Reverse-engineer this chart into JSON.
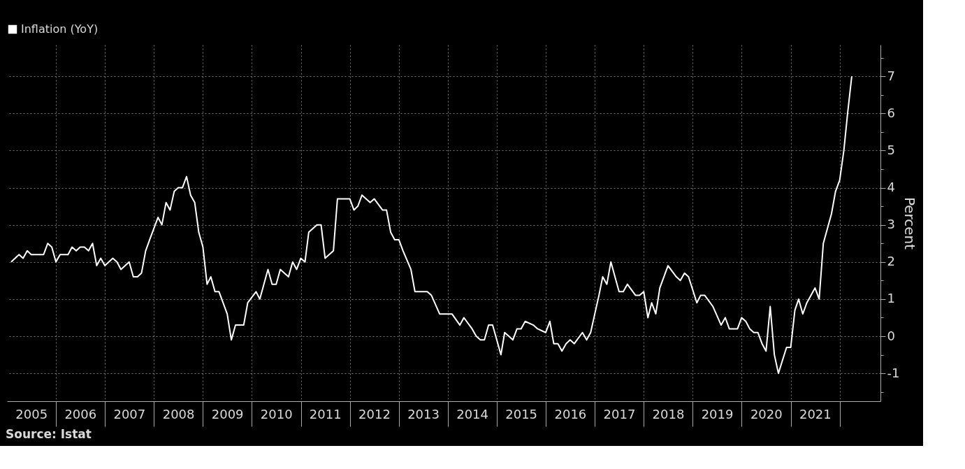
{
  "chart_data": {
    "type": "line",
    "legend": "top left",
    "grid": true,
    "line_style": "solid",
    "ylabel": "Percent",
    "annotations": [
      "Source: Istat"
    ],
    "xlim": [
      "2005-01-01",
      "2022-11-01"
    ],
    "xticks": [
      {
        "value": "2005-07-01",
        "label": "2005"
      },
      {
        "value": "2006-01-01",
        "label": null
      },
      {
        "value": "2006-07-01",
        "label": "2006"
      },
      {
        "value": "2007-01-01",
        "label": null
      },
      {
        "value": "2007-07-01",
        "label": "2007"
      },
      {
        "value": "2008-01-01",
        "label": null
      },
      {
        "value": "2008-07-01",
        "label": "2008"
      },
      {
        "value": "2009-01-01",
        "label": null
      },
      {
        "value": "2009-07-01",
        "label": "2009"
      },
      {
        "value": "2010-01-01",
        "label": null
      },
      {
        "value": "2010-07-01",
        "label": "2010"
      },
      {
        "value": "2011-01-01",
        "label": null
      },
      {
        "value": "2011-07-01",
        "label": "2011"
      },
      {
        "value": "2012-01-01",
        "label": null
      },
      {
        "value": "2012-07-01",
        "label": "2012"
      },
      {
        "value": "2013-01-01",
        "label": null
      },
      {
        "value": "2013-07-01",
        "label": "2013"
      },
      {
        "value": "2014-01-01",
        "label": null
      },
      {
        "value": "2014-07-01",
        "label": "2014"
      },
      {
        "value": "2015-01-01",
        "label": null
      },
      {
        "value": "2015-07-01",
        "label": "2015"
      },
      {
        "value": "2016-01-01",
        "label": null
      },
      {
        "value": "2016-07-01",
        "label": "2016"
      },
      {
        "value": "2017-01-01",
        "label": null
      },
      {
        "value": "2017-07-01",
        "label": "2017"
      },
      {
        "value": "2018-01-01",
        "label": null
      },
      {
        "value": "2018-07-01",
        "label": "2018"
      },
      {
        "value": "2019-01-01",
        "label": null
      },
      {
        "value": "2019-07-01",
        "label": "2019"
      },
      {
        "value": "2020-01-01",
        "label": null
      },
      {
        "value": "2020-07-01",
        "label": "2020"
      },
      {
        "value": "2021-01-01",
        "label": null
      },
      {
        "value": "2021-07-01",
        "label": "2021"
      },
      {
        "value": "2022-01-01",
        "label": null
      }
    ],
    "ylim": [
      -1.75,
      7.85
    ],
    "yticks": [
      {
        "value": -1.5,
        "label": null
      },
      -1,
      {
        "value": -0.5,
        "label": null
      },
      0,
      {
        "value": 0.5,
        "label": null
      },
      1,
      {
        "value": 1.5,
        "label": null
      },
      2,
      {
        "value": 2.5,
        "label": null
      },
      3,
      {
        "value": 3.5,
        "label": null
      },
      4,
      {
        "value": 4.5,
        "label": null
      },
      5,
      {
        "value": 5.5,
        "label": null
      },
      6,
      {
        "value": 6.5,
        "label": null
      },
      7,
      {
        "value": 7.5,
        "label": null
      }
    ],
    "series": [
      {
        "name": "Inflation (YoY)",
        "color": "#ffffff",
        "x": [
          "2005-02",
          "2005-04",
          "2005-05",
          "2005-06",
          "2005-07",
          "2005-10",
          "2005-11",
          "2005-12",
          "2006-01",
          "2006-02",
          "2006-04",
          "2006-05",
          "2006-06",
          "2006-07",
          "2006-08",
          "2006-09",
          "2006-10",
          "2006-11",
          "2006-12",
          "2007-01",
          "2007-03",
          "2007-04",
          "2007-05",
          "2007-07",
          "2007-08",
          "2007-09",
          "2007-10",
          "2007-11",
          "2007-12",
          "2008-02",
          "2008-03",
          "2008-04",
          "2008-05",
          "2008-06",
          "2008-07",
          "2008-08",
          "2008-09",
          "2008-10",
          "2008-11",
          "2008-12",
          "2009-01",
          "2009-02",
          "2009-03",
          "2009-04",
          "2009-05",
          "2009-07",
          "2009-08",
          "2009-09",
          "2009-11",
          "2009-12",
          "2010-02",
          "2010-03",
          "2010-05",
          "2010-06",
          "2010-07",
          "2010-08",
          "2010-10",
          "2010-11",
          "2010-12",
          "2011-01",
          "2011-02",
          "2011-03",
          "2011-05",
          "2011-06",
          "2011-07",
          "2011-09",
          "2011-10",
          "2012-01",
          "2012-02",
          "2012-03",
          "2012-04",
          "2012-06",
          "2012-07",
          "2012-09",
          "2012-10",
          "2012-11",
          "2012-12",
          "2013-01",
          "2013-02",
          "2013-04",
          "2013-05",
          "2013-08",
          "2013-09",
          "2013-11",
          "2014-02",
          "2014-04",
          "2014-05",
          "2014-07",
          "2014-08",
          "2014-09",
          "2014-10",
          "2014-11",
          "2014-12",
          "2015-01",
          "2015-02",
          "2015-03",
          "2015-04",
          "2015-05",
          "2015-06",
          "2015-07",
          "2015-08",
          "2015-10",
          "2015-11",
          "2016-01",
          "2016-02",
          "2016-03",
          "2016-04",
          "2016-05",
          "2016-06",
          "2016-07",
          "2016-08",
          "2016-10",
          "2016-11",
          "2016-12",
          "2017-01",
          "2017-02",
          "2017-03",
          "2017-04",
          "2017-05",
          "2017-07",
          "2017-08",
          "2017-09",
          "2017-11",
          "2017-12",
          "2018-01",
          "2018-02",
          "2018-03",
          "2018-04",
          "2018-05",
          "2018-07",
          "2018-09",
          "2018-10",
          "2018-11",
          "2018-12",
          "2019-02",
          "2019-03",
          "2019-04",
          "2019-06",
          "2019-08",
          "2019-09",
          "2019-10",
          "2019-12",
          "2020-01",
          "2020-02",
          "2020-03",
          "2020-04",
          "2020-05",
          "2020-06",
          "2020-07",
          "2020-08",
          "2020-09",
          "2020-10",
          "2020-12",
          "2021-01",
          "2021-02",
          "2021-03",
          "2021-04",
          "2021-05",
          "2021-06",
          "2021-07",
          "2021-08",
          "2021-09",
          "2021-11",
          "2021-12",
          "2022-01",
          "2022-02",
          "2022-03",
          "2022-04"
        ],
        "values": [
          2.0,
          2.2,
          2.1,
          2.3,
          2.2,
          2.2,
          2.5,
          2.4,
          2.0,
          2.2,
          2.2,
          2.4,
          2.3,
          2.4,
          2.4,
          2.3,
          2.5,
          1.9,
          2.1,
          1.9,
          2.1,
          2.0,
          1.8,
          2.0,
          1.6,
          1.6,
          1.7,
          2.3,
          2.6,
          3.2,
          3.0,
          3.6,
          3.4,
          3.9,
          4.0,
          4.0,
          4.3,
          3.8,
          3.6,
          2.8,
          2.4,
          1.4,
          1.6,
          1.2,
          1.2,
          0.6,
          -0.1,
          0.3,
          0.3,
          0.9,
          1.2,
          1.0,
          1.8,
          1.4,
          1.4,
          1.8,
          1.6,
          2.0,
          1.8,
          2.1,
          2.0,
          2.8,
          3.0,
          3.0,
          2.1,
          2.3,
          3.7,
          3.7,
          3.4,
          3.5,
          3.8,
          3.6,
          3.7,
          3.4,
          3.4,
          2.8,
          2.6,
          2.6,
          2.3,
          1.8,
          1.2,
          1.2,
          1.1,
          0.6,
          0.6,
          0.3,
          0.5,
          0.2,
          0.0,
          -0.1,
          -0.1,
          0.3,
          0.3,
          -0.1,
          -0.5,
          0.1,
          0.0,
          -0.1,
          0.2,
          0.2,
          0.4,
          0.3,
          0.2,
          0.1,
          0.4,
          -0.2,
          -0.2,
          -0.4,
          -0.2,
          -0.1,
          -0.2,
          0.1,
          -0.1,
          0.1,
          0.6,
          1.1,
          1.6,
          1.4,
          2.0,
          1.2,
          1.2,
          1.4,
          1.1,
          1.1,
          1.2,
          0.5,
          0.9,
          0.6,
          1.3,
          1.9,
          1.6,
          1.5,
          1.7,
          1.6,
          0.9,
          1.1,
          1.1,
          0.8,
          0.3,
          0.5,
          0.2,
          0.2,
          0.5,
          0.4,
          0.2,
          0.1,
          0.1,
          -0.2,
          -0.4,
          0.8,
          -0.5,
          -1.0,
          -0.3,
          -0.3,
          0.7,
          1.0,
          0.6,
          0.9,
          1.1,
          1.3,
          1.0,
          2.5,
          3.3,
          3.9,
          4.2,
          5.0,
          6.0,
          7.0
        ]
      }
    ]
  }
}
